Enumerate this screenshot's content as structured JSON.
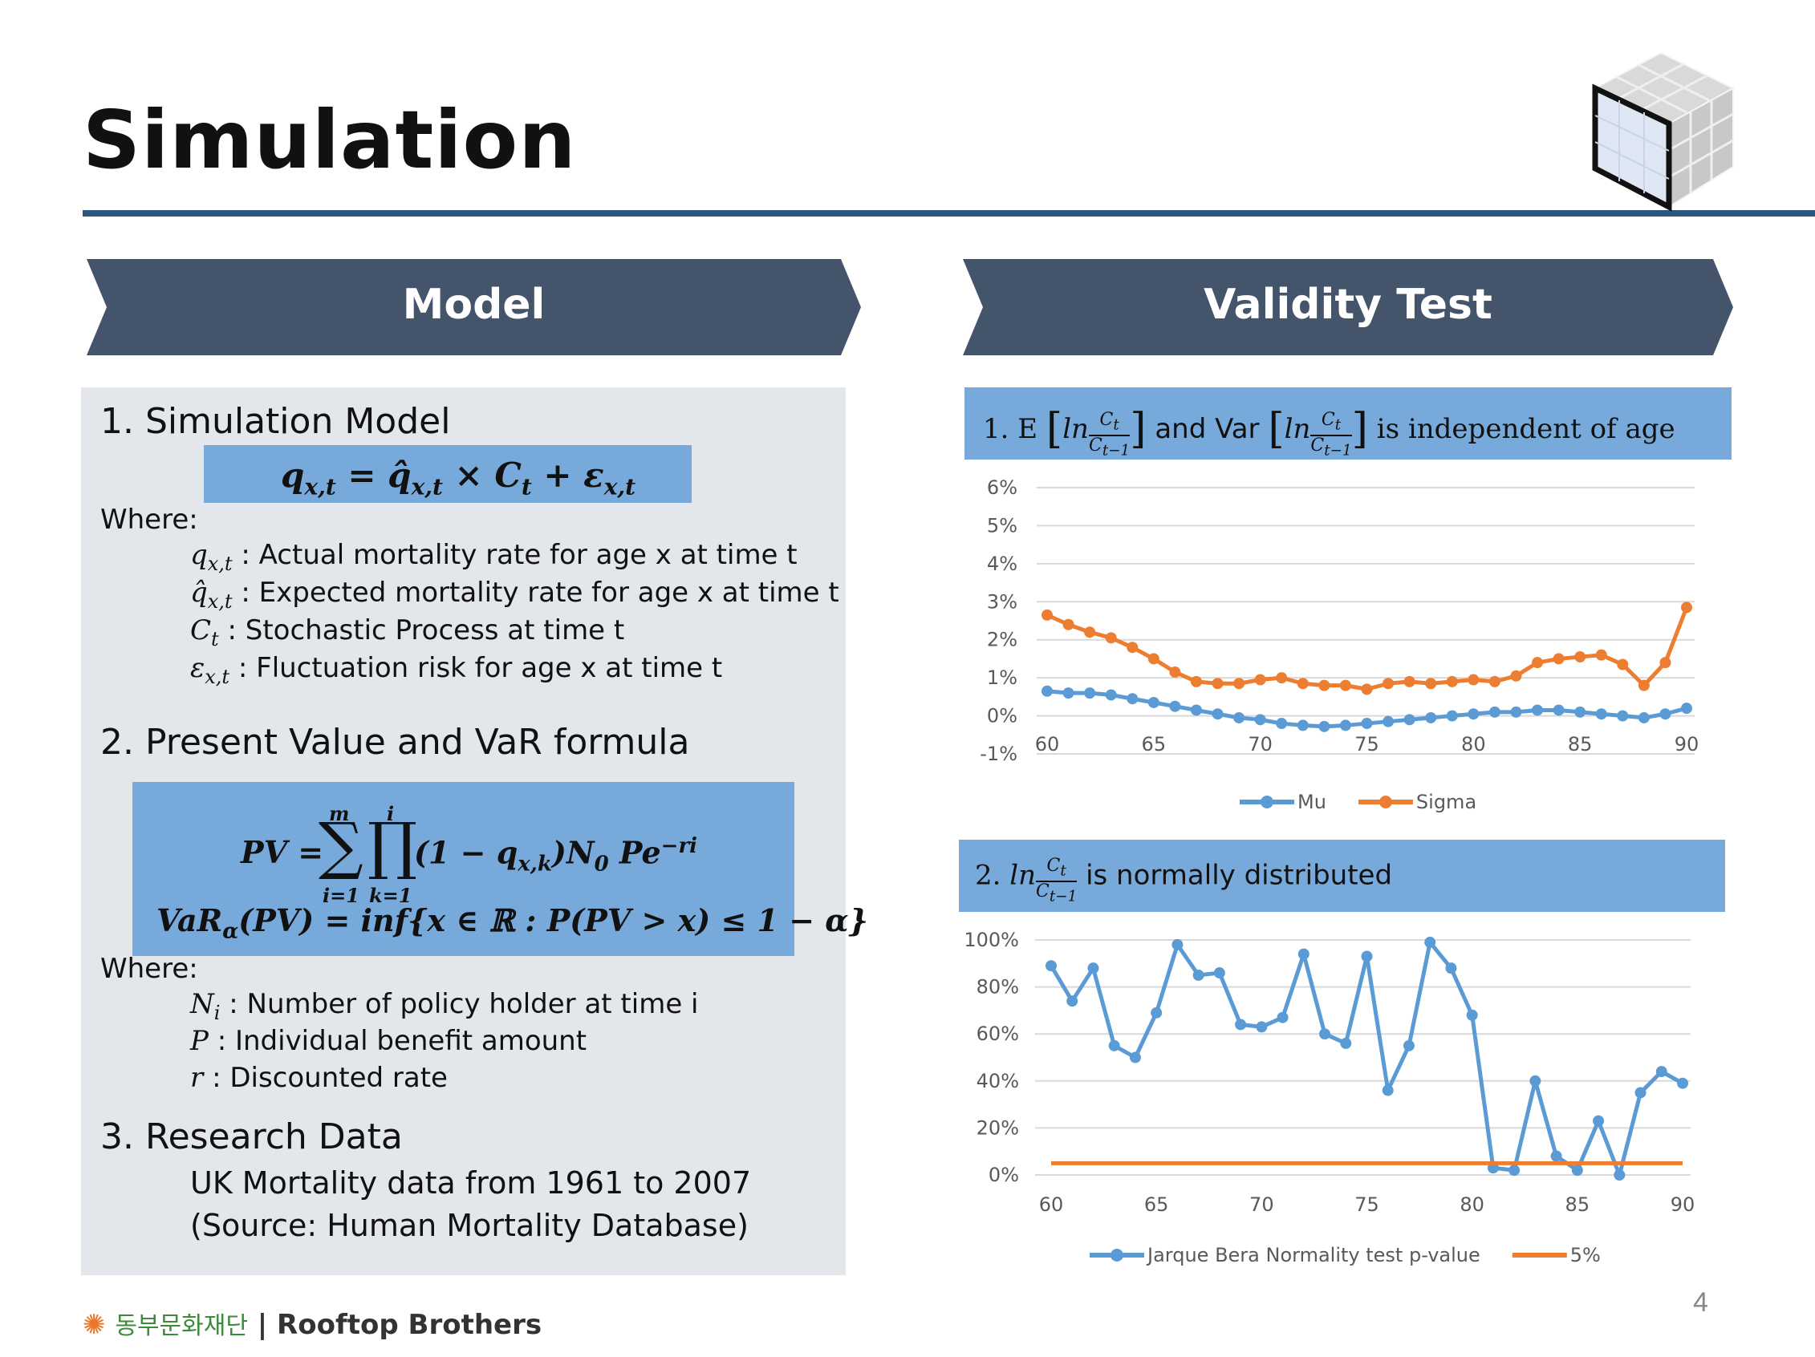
{
  "slide": {
    "title": "Simulation",
    "page_number": "4"
  },
  "sections": {
    "model_header": "Model",
    "validity_header": "Validity Test"
  },
  "model": {
    "s1_title": "1. Simulation Model",
    "s1_formula": "q x,t = q̂ x,t × C t + ε x,t",
    "where_1": "Where:",
    "defs_1": [
      {
        "sym": "q",
        "sub": "x,t",
        "text": " : Actual mortality rate for age x at time t"
      },
      {
        "sym": "q̂",
        "sub": "x,t",
        "text": " : Expected mortality rate for age x at time t"
      },
      {
        "sym": "C",
        "sub": "t",
        "text": " : Stochastic Process at time t"
      },
      {
        "sym": "ε",
        "sub": "x,t",
        "text": " : Fluctuation risk for age x at time t"
      }
    ],
    "s2_title": "2. Present Value and VaR formula",
    "pv_lhs": "PV =",
    "pv_rhs": "(1 − q x,k )N 0 Pe −ri",
    "sum_upper": "m",
    "sum_lower": "i=1",
    "prod_upper": "i",
    "prod_lower": "k=1",
    "var_formula": "VaR α (PV) = inf{x ∈ ℝ : P(PV > x) ≤ 1 − α}",
    "where_2": "Where:",
    "defs_2": [
      {
        "sym": "N",
        "sub": "i",
        "text": " : Number of policy holder at time i"
      },
      {
        "sym": "P",
        "sub": "",
        "text": " : Individual benefit amount"
      },
      {
        "sym": "r",
        "sub": "",
        "text": " : Discounted rate"
      }
    ],
    "s3_title": "3. Research Data",
    "s3_line1": "UK Mortality data from 1961 to 2007",
    "s3_line2": "(Source: Human Mortality Database)"
  },
  "validity": {
    "test1_prefix": "1. E",
    "test1_mid": "and Var",
    "test1_suffix": "is independent of age",
    "test2_prefix": "2.",
    "test2_suffix": "is normally distributed",
    "frac_ln": "ln",
    "frac_num": "C t",
    "frac_den": "C t−1"
  },
  "footer": {
    "org": "동부문화재단",
    "sep": " | ",
    "team": "Rooftop Brothers"
  },
  "colors": {
    "navy": "#44546a",
    "formula_blue": "#77aadb",
    "panel_gray": "#e3e6ea",
    "series_blue": "#5b9bd5",
    "series_orange": "#ed7d31"
  },
  "chart_data": [
    {
      "type": "line",
      "x": [
        60,
        61,
        62,
        63,
        64,
        65,
        66,
        67,
        68,
        69,
        70,
        71,
        72,
        73,
        74,
        75,
        76,
        77,
        78,
        79,
        80,
        81,
        82,
        83,
        84,
        85,
        86,
        87,
        88,
        89,
        90
      ],
      "xticks": [
        60,
        65,
        70,
        75,
        80,
        85,
        90
      ],
      "yticks": [
        "6%",
        "5%",
        "4%",
        "3%",
        "2%",
        "1%",
        "0%",
        "-1%"
      ],
      "ylim": [
        -1,
        6
      ],
      "series": [
        {
          "name": "Mu",
          "color": "#5b9bd5",
          "values": [
            0.65,
            0.6,
            0.6,
            0.55,
            0.45,
            0.35,
            0.25,
            0.15,
            0.05,
            -0.05,
            -0.1,
            -0.2,
            -0.25,
            -0.28,
            -0.25,
            -0.2,
            -0.15,
            -0.1,
            -0.05,
            0.0,
            0.05,
            0.1,
            0.1,
            0.15,
            0.15,
            0.1,
            0.05,
            0.0,
            -0.05,
            0.05,
            0.2
          ]
        },
        {
          "name": "Sigma",
          "color": "#ed7d31",
          "values": [
            2.65,
            2.4,
            2.2,
            2.05,
            1.8,
            1.5,
            1.15,
            0.9,
            0.85,
            0.85,
            0.95,
            1.0,
            0.85,
            0.8,
            0.8,
            0.7,
            0.85,
            0.9,
            0.85,
            0.9,
            0.95,
            0.9,
            1.05,
            1.4,
            1.5,
            1.55,
            1.6,
            1.35,
            0.8,
            1.4,
            2.85
          ]
        }
      ]
    },
    {
      "type": "line",
      "x": [
        60,
        61,
        62,
        63,
        64,
        65,
        66,
        67,
        68,
        69,
        70,
        71,
        72,
        73,
        74,
        75,
        76,
        77,
        78,
        79,
        80,
        81,
        82,
        83,
        84,
        85,
        86,
        87,
        88,
        89,
        90
      ],
      "xticks": [
        60,
        65,
        70,
        75,
        80,
        85,
        90
      ],
      "yticks": [
        "100%",
        "80%",
        "60%",
        "40%",
        "20%",
        "0%"
      ],
      "ylim": [
        0,
        100
      ],
      "series": [
        {
          "name": "Jarque Bera Normality test p-value",
          "color": "#5b9bd5",
          "values": [
            89,
            74,
            88,
            55,
            50,
            69,
            98,
            85,
            86,
            64,
            63,
            67,
            94,
            60,
            56,
            93,
            36,
            55,
            99,
            88,
            68,
            3,
            2,
            40,
            8,
            2,
            23,
            0,
            35,
            44,
            39
          ]
        },
        {
          "name": "5%",
          "color": "#ed7d31",
          "values": [
            5,
            5,
            5,
            5,
            5,
            5,
            5,
            5,
            5,
            5,
            5,
            5,
            5,
            5,
            5,
            5,
            5,
            5,
            5,
            5,
            5,
            5,
            5,
            5,
            5,
            5,
            5,
            5,
            5,
            5,
            5
          ]
        }
      ]
    }
  ]
}
